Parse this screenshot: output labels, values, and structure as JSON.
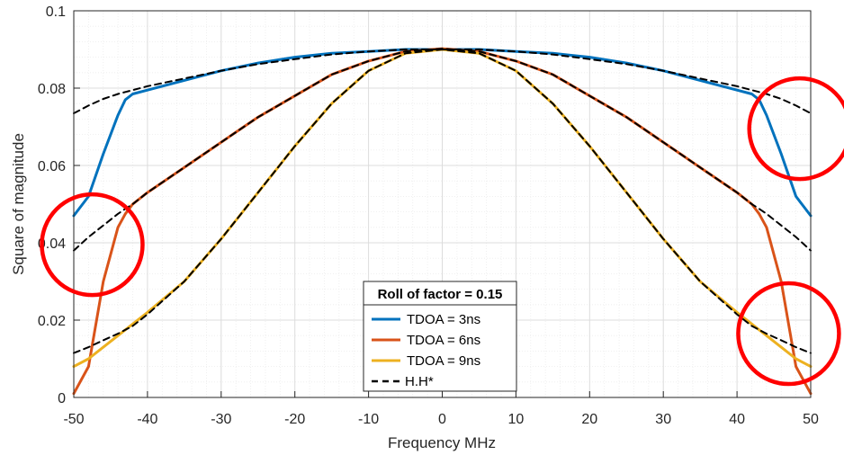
{
  "chart_data": {
    "type": "line",
    "title": "",
    "xlabel": "Frequency MHz",
    "ylabel": "Square of magnitude",
    "xlim": [
      -50,
      50
    ],
    "ylim": [
      0,
      0.1
    ],
    "xticks": [
      -50,
      -40,
      -30,
      -20,
      -10,
      0,
      10,
      20,
      30,
      40,
      50
    ],
    "yticks": [
      0,
      0.02,
      0.04,
      0.06,
      0.08,
      0.1
    ],
    "xtick_labels": [
      "-50",
      "-40",
      "-30",
      "-20",
      "-10",
      "0",
      "10",
      "20",
      "30",
      "40",
      "50"
    ],
    "ytick_labels": [
      "0",
      "0.02",
      "0.04",
      "0.06",
      "0.08",
      "0.1"
    ],
    "grid": "major and minor",
    "legend": {
      "placement": "bottom-center",
      "title": "Roll of factor = 0.15",
      "entries": [
        "TDOA = 3ns",
        "TDOA = 6ns",
        "TDOA = 9ns",
        "H.H*"
      ]
    },
    "x": [
      -50,
      -48,
      -46,
      -44,
      -43,
      -42,
      -40,
      -35,
      -30,
      -25,
      -20,
      -15,
      -10,
      -5,
      0,
      5,
      10,
      15,
      20,
      25,
      30,
      35,
      40,
      42,
      43,
      44,
      46,
      48,
      50
    ],
    "series": [
      {
        "name": "TDOA = 3ns",
        "color": "#0072BD",
        "values": [
          0.047,
          0.052,
          0.063,
          0.073,
          0.077,
          0.0785,
          0.0795,
          0.082,
          0.0845,
          0.0865,
          0.088,
          0.089,
          0.0895,
          0.09,
          0.09,
          0.09,
          0.0895,
          0.089,
          0.088,
          0.0865,
          0.0845,
          0.082,
          0.0795,
          0.0785,
          0.077,
          0.073,
          0.063,
          0.052,
          0.047
        ]
      },
      {
        "name": "TDOA = 6ns",
        "color": "#D95319",
        "values": [
          0.001,
          0.008,
          0.03,
          0.044,
          0.0475,
          0.05,
          0.053,
          0.0595,
          0.066,
          0.0725,
          0.078,
          0.0835,
          0.087,
          0.0895,
          0.0902,
          0.0895,
          0.087,
          0.0835,
          0.078,
          0.0725,
          0.066,
          0.0595,
          0.053,
          0.05,
          0.0475,
          0.044,
          0.03,
          0.008,
          0.001
        ]
      },
      {
        "name": "TDOA = 9ns",
        "color": "#EDB120",
        "values": [
          0.008,
          0.01,
          0.013,
          0.016,
          0.0175,
          0.019,
          0.022,
          0.03,
          0.041,
          0.053,
          0.065,
          0.076,
          0.0845,
          0.089,
          0.09,
          0.089,
          0.0845,
          0.076,
          0.065,
          0.053,
          0.041,
          0.03,
          0.022,
          0.019,
          0.0175,
          0.016,
          0.013,
          0.01,
          0.008
        ]
      },
      {
        "name": "H.H*",
        "color": "#000000",
        "dashed": true,
        "values": [
          0.0735,
          0.0755,
          0.0772,
          0.0785,
          0.079,
          0.0795,
          0.0805,
          0.0825,
          0.0845,
          0.0862,
          0.0875,
          0.0887,
          0.0895,
          0.09,
          0.09,
          0.09,
          0.0895,
          0.0887,
          0.0875,
          0.0862,
          0.0845,
          0.0825,
          0.0805,
          0.0795,
          0.079,
          0.0785,
          0.0772,
          0.0755,
          0.0735
        ]
      },
      {
        "name": "H.H*",
        "color": "#000000",
        "dashed": true,
        "values": [
          0.038,
          0.0415,
          0.0445,
          0.0475,
          0.0488,
          0.05,
          0.053,
          0.0595,
          0.066,
          0.0725,
          0.078,
          0.0835,
          0.087,
          0.0895,
          0.0902,
          0.0895,
          0.087,
          0.0835,
          0.078,
          0.0725,
          0.066,
          0.0595,
          0.053,
          0.05,
          0.0488,
          0.0475,
          0.0445,
          0.0415,
          0.038
        ]
      },
      {
        "name": "H.H*",
        "color": "#000000",
        "dashed": true,
        "values": [
          0.0115,
          0.013,
          0.0148,
          0.0165,
          0.0175,
          0.0185,
          0.0215,
          0.03,
          0.041,
          0.053,
          0.065,
          0.076,
          0.0845,
          0.089,
          0.09,
          0.089,
          0.0845,
          0.076,
          0.065,
          0.053,
          0.041,
          0.03,
          0.0215,
          0.0185,
          0.0175,
          0.0165,
          0.0148,
          0.013,
          0.0115
        ]
      }
    ],
    "annotations": [
      {
        "type": "circle",
        "color": "#FF0000",
        "x": -47.5,
        "y": 0.0395
      },
      {
        "type": "circle",
        "color": "#FF0000",
        "x": 48.5,
        "y": 0.0695
      },
      {
        "type": "circle",
        "color": "#FF0000",
        "x": 47,
        "y": 0.0165
      }
    ]
  }
}
